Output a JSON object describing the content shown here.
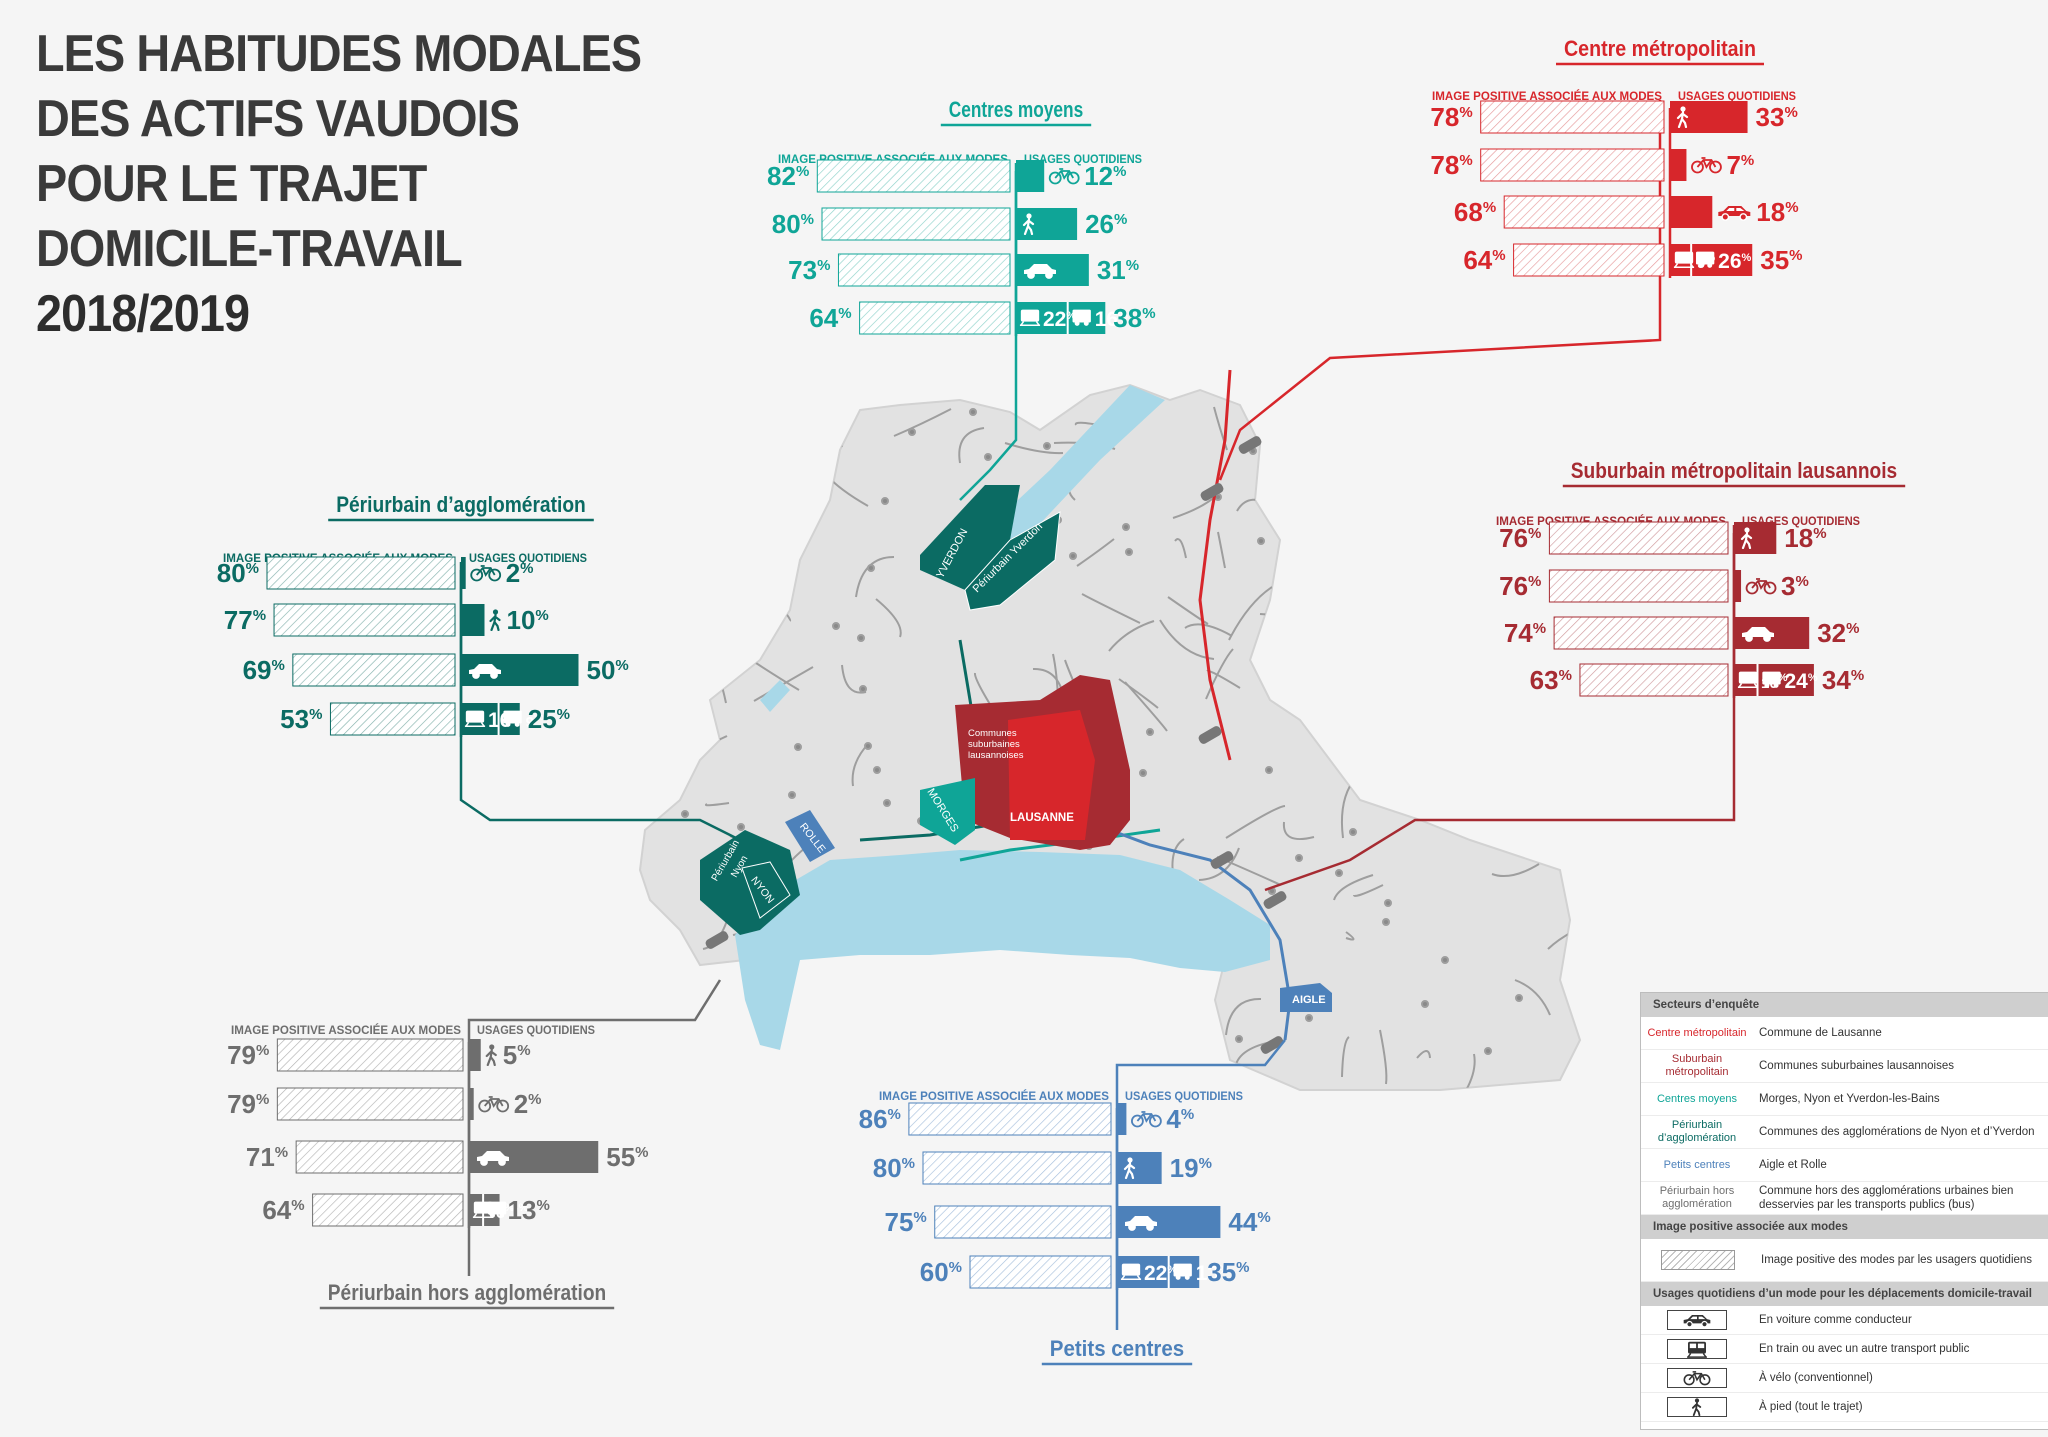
{
  "title_lines": [
    "LES HABITUDES  MODALES",
    "DES ACTIFS VAUDOIS",
    "POUR LE TRAJET",
    "DOMICILE-TRAVAIL",
    "2018/2019"
  ],
  "colors": {
    "metro": "#d7262b",
    "suburb": "#a62b32",
    "centres_moyens": "#0fa597",
    "periurbain_agglo": "#0b6b63",
    "petits_centres": "#4d81ba",
    "periurbain_hors": "#6e6e6e",
    "lake": "#a8d8e8",
    "map_base": "#e2e2e2"
  },
  "icons": {
    "bike": "bicycle-icon",
    "walk": "pedestrian-icon",
    "car": "car-icon",
    "train": "train-icon",
    "bus": "bus-icon"
  },
  "map_labels": {
    "yverdon": "YVERDON",
    "periurbain_yverdon": "Périurbain Yverdon",
    "communes_suburbaines": [
      "Communes",
      "suburbaines",
      "lausannoises"
    ],
    "lausanne": "LAUSANNE",
    "morges": "MORGES",
    "rolle": "ROLLE",
    "periurbain_nyon": [
      "Périurbain",
      "Nyon"
    ],
    "nyon": "NYON",
    "aigle": "AIGLE"
  },
  "chart_data": [
    {
      "type": "bar",
      "title": "Centre métropolitain",
      "color_key": "metro",
      "left_header": "IMAGE POSITIVE ASSOCIÉE AUX MODES",
      "right_header": "USAGES QUOTIDIENS",
      "rows": [
        {
          "icon": "walk",
          "image_positive": 78,
          "usage": 33
        },
        {
          "icon": "bike",
          "image_positive": 78,
          "usage": 7
        },
        {
          "icon": "car",
          "image_positive": 68,
          "usage": 18
        },
        {
          "icon": "pt",
          "image_positive": 64,
          "usage": 35,
          "train": 9,
          "bus": 26
        }
      ]
    },
    {
      "type": "bar",
      "title": "Centres moyens",
      "color_key": "centres_moyens",
      "left_header": "IMAGE POSITIVE ASSOCIÉE AUX MODES",
      "right_header": "USAGES QUOTIDIENS",
      "rows": [
        {
          "icon": "bike",
          "image_positive": 82,
          "usage": 12
        },
        {
          "icon": "walk",
          "image_positive": 80,
          "usage": 26
        },
        {
          "icon": "car",
          "image_positive": 73,
          "usage": 31
        },
        {
          "icon": "pt",
          "image_positive": 64,
          "usage": 38,
          "train": 22,
          "bus": 16
        }
      ]
    },
    {
      "type": "bar",
      "title": "Suburbain métropolitain lausannois",
      "color_key": "suburb",
      "left_header": "IMAGE POSITIVE ASSOCIÉE AUX MODES",
      "right_header": "USAGES QUOTIDIENS",
      "rows": [
        {
          "icon": "walk",
          "image_positive": 76,
          "usage": 18
        },
        {
          "icon": "bike",
          "image_positive": 76,
          "usage": 3
        },
        {
          "icon": "car",
          "image_positive": 74,
          "usage": 32
        },
        {
          "icon": "pt",
          "image_positive": 63,
          "usage": 34,
          "train": 10,
          "bus": 24
        }
      ]
    },
    {
      "type": "bar",
      "title": "Périurbain d’agglomération",
      "color_key": "periurbain_agglo",
      "left_header": "IMAGE POSITIVE ASSOCIÉE AUX MODES",
      "right_header": "USAGES QUOTIDIENS",
      "rows": [
        {
          "icon": "bike",
          "image_positive": 80,
          "usage": 2
        },
        {
          "icon": "walk",
          "image_positive": 77,
          "usage": 10
        },
        {
          "icon": "car",
          "image_positive": 69,
          "usage": 50
        },
        {
          "icon": "pt",
          "image_positive": 53,
          "usage": 25,
          "train": 16,
          "bus": 9
        }
      ]
    },
    {
      "type": "bar",
      "title": "Périurbain hors agglomération",
      "color_key": "periurbain_hors",
      "left_header": "IMAGE POSITIVE ASSOCIÉE AUX MODES",
      "right_header": "USAGES QUOTIDIENS",
      "rows": [
        {
          "icon": "walk",
          "image_positive": 79,
          "usage": 5
        },
        {
          "icon": "bike",
          "image_positive": 79,
          "usage": 2
        },
        {
          "icon": "car",
          "image_positive": 71,
          "usage": 55
        },
        {
          "icon": "pt",
          "image_positive": 64,
          "usage": 13,
          "train": 6,
          "bus": 7
        }
      ]
    },
    {
      "type": "bar",
      "title": "Petits centres",
      "color_key": "petits_centres",
      "left_header": "IMAGE POSITIVE ASSOCIÉE AUX MODES",
      "right_header": "USAGES QUOTIDIENS",
      "rows": [
        {
          "icon": "bike",
          "image_positive": 86,
          "usage": 4
        },
        {
          "icon": "walk",
          "image_positive": 80,
          "usage": 19
        },
        {
          "icon": "car",
          "image_positive": 75,
          "usage": 44
        },
        {
          "icon": "pt",
          "image_positive": 60,
          "usage": 35,
          "train": 22,
          "bus": 13
        }
      ]
    }
  ],
  "legend": {
    "secteurs_title": "Secteurs d’enquête",
    "secteurs": [
      {
        "name": "Centre métropolitain",
        "color_key": "metro",
        "desc": "Commune de Lausanne"
      },
      {
        "name": "Suburbain métropolitain",
        "color_key": "suburb",
        "desc": "Communes suburbaines lausannoises"
      },
      {
        "name": "Centres moyens",
        "color_key": "centres_moyens",
        "desc": "Morges, Nyon et Yverdon-les-Bains"
      },
      {
        "name": "Périurbain d’agglomération",
        "color_key": "periurbain_agglo",
        "desc": "Communes des agglomérations de Nyon et d’Yverdon"
      },
      {
        "name": "Petits centres",
        "color_key": "petits_centres",
        "desc": "Aigle et Rolle"
      },
      {
        "name": "Périurbain hors agglomération",
        "color_key": "periurbain_hors",
        "desc": "Commune hors des agglomérations urbaines bien desservies par les transports publics (bus)"
      }
    ],
    "image_title": "Image positive associée aux modes",
    "image_desc": "Image positive des modes par les usagers quotidiens",
    "usages_title": "Usages quotidiens d’un mode pour les déplacements domicile-travail",
    "usages": [
      {
        "icon": "car",
        "desc": "En voiture comme conducteur"
      },
      {
        "icon": "train",
        "desc": "En train ou avec un autre transport public"
      },
      {
        "icon": "bike",
        "desc": "À vélo (conventionnel)"
      },
      {
        "icon": "walk",
        "desc": "À pied (tout le trajet)"
      }
    ]
  }
}
